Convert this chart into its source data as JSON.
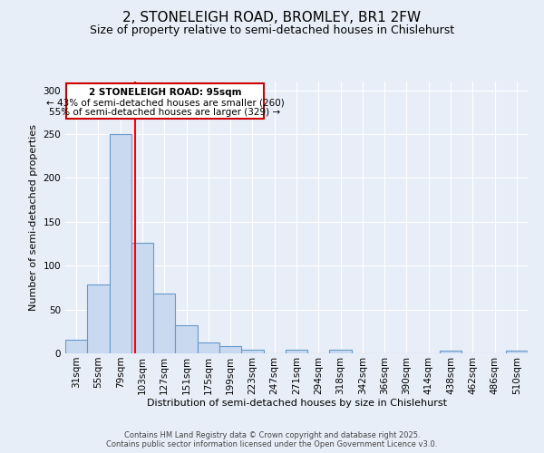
{
  "title": "2, STONELEIGH ROAD, BROMLEY, BR1 2FW",
  "subtitle": "Size of property relative to semi-detached houses in Chislehurst",
  "xlabel": "Distribution of semi-detached houses by size in Chislehurst",
  "ylabel": "Number of semi-detached properties",
  "bin_labels": [
    "31sqm",
    "55sqm",
    "79sqm",
    "103sqm",
    "127sqm",
    "151sqm",
    "175sqm",
    "199sqm",
    "223sqm",
    "247sqm",
    "271sqm",
    "294sqm",
    "318sqm",
    "342sqm",
    "366sqm",
    "390sqm",
    "414sqm",
    "438sqm",
    "462sqm",
    "486sqm",
    "510sqm"
  ],
  "bar_values": [
    15,
    79,
    250,
    126,
    68,
    32,
    12,
    8,
    4,
    0,
    4,
    0,
    4,
    0,
    0,
    0,
    0,
    3,
    0,
    0,
    3
  ],
  "bar_color": "#c9d9f0",
  "bar_edge_color": "#6699cc",
  "background_color": "#e8eef8",
  "grid_color": "#ffffff",
  "red_line_x": 2.67,
  "annotation_title": "2 STONELEIGH ROAD: 95sqm",
  "annotation_line1": "← 43% of semi-detached houses are smaller (260)",
  "annotation_line2": "55% of semi-detached houses are larger (329) →",
  "annotation_box_color": "#ffffff",
  "annotation_box_edge": "#cc0000",
  "footer1": "Contains HM Land Registry data © Crown copyright and database right 2025.",
  "footer2": "Contains public sector information licensed under the Open Government Licence v3.0.",
  "ylim": [
    0,
    310
  ],
  "title_fontsize": 11,
  "subtitle_fontsize": 9,
  "axis_fontsize": 8,
  "tick_fontsize": 7.5
}
